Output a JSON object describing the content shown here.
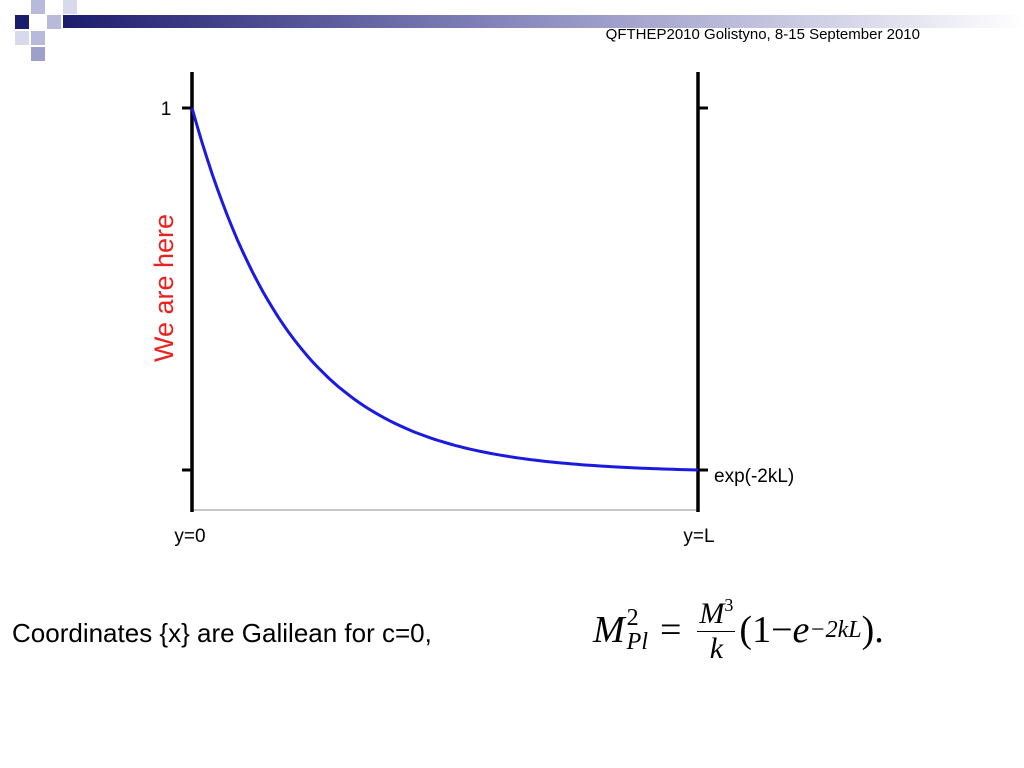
{
  "header": {
    "text": "QFTHEP2010  Golistyno,  8-15 September 2010"
  },
  "diagram": {
    "left_top_label": "1",
    "right_bottom_label": "exp(-2kL)",
    "left_axis_label": "y=0",
    "right_axis_label": "y=L",
    "annotation": "We are here"
  },
  "caption": {
    "text": "Coordinates  {x} are Galilean for c=0,",
    "formula": {
      "lhs_base": "M",
      "lhs_sup": "2",
      "lhs_sub": "Pl",
      "equals": "=",
      "num_base": "M",
      "num_sup": "3",
      "den": "k",
      "paren_open": "(1",
      "minus": "−",
      "exp_base": "e",
      "exp_sup": "−2kL",
      "paren_close": ")."
    }
  }
}
